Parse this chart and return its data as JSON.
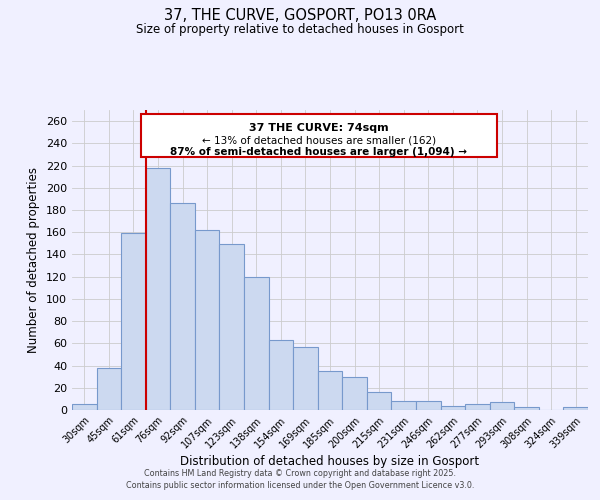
{
  "title": "37, THE CURVE, GOSPORT, PO13 0RA",
  "subtitle": "Size of property relative to detached houses in Gosport",
  "xlabel": "Distribution of detached houses by size in Gosport",
  "ylabel": "Number of detached properties",
  "bar_labels": [
    "30sqm",
    "45sqm",
    "61sqm",
    "76sqm",
    "92sqm",
    "107sqm",
    "123sqm",
    "138sqm",
    "154sqm",
    "169sqm",
    "185sqm",
    "200sqm",
    "215sqm",
    "231sqm",
    "246sqm",
    "262sqm",
    "277sqm",
    "293sqm",
    "308sqm",
    "324sqm",
    "339sqm"
  ],
  "bar_values": [
    5,
    38,
    159,
    218,
    186,
    162,
    149,
    120,
    63,
    57,
    35,
    30,
    16,
    8,
    8,
    4,
    5,
    7,
    3,
    0,
    3
  ],
  "bar_color": "#ccd9f0",
  "bar_edge_color": "#7799cc",
  "grid_color": "#cccccc",
  "bg_color": "#f0f0ff",
  "vline_color": "#cc0000",
  "annotation_title": "37 THE CURVE: 74sqm",
  "annotation_line1": "← 13% of detached houses are smaller (162)",
  "annotation_line2": "87% of semi-detached houses are larger (1,094) →",
  "annotation_box_color": "#ffffff",
  "annotation_border_color": "#cc0000",
  "ylim": [
    0,
    270
  ],
  "yticks": [
    0,
    20,
    40,
    60,
    80,
    100,
    120,
    140,
    160,
    180,
    200,
    220,
    240,
    260
  ],
  "footer1": "Contains HM Land Registry data © Crown copyright and database right 2025.",
  "footer2": "Contains public sector information licensed under the Open Government Licence v3.0."
}
